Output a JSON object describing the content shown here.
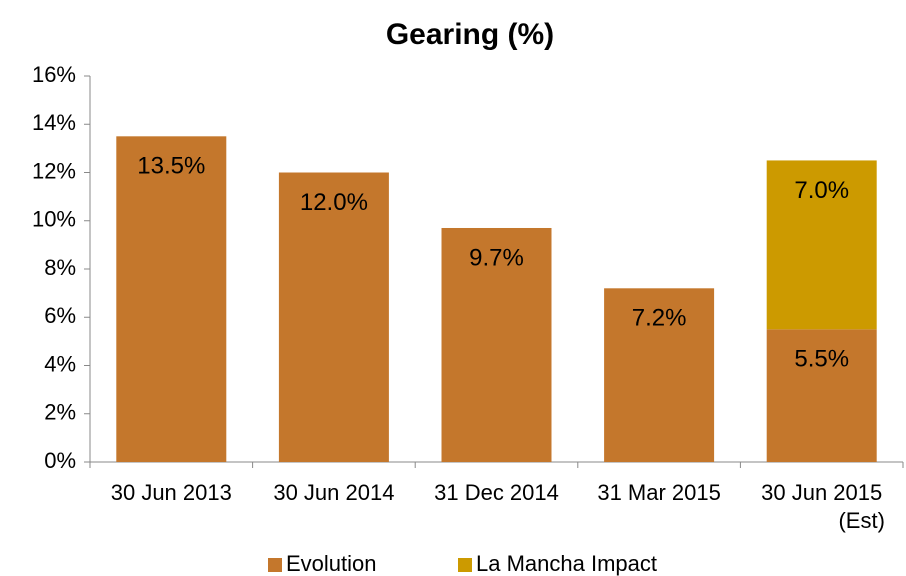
{
  "chart_data": {
    "type": "stacked_bar",
    "title": "Gearing (%)",
    "categories": [
      "30 Jun 2013",
      "30 Jun 2014",
      "31 Dec 2014",
      "31 Mar 2015",
      "30 Jun 2015 (Est)"
    ],
    "series": [
      {
        "name": "Evolution",
        "color": "#c4772c",
        "values": [
          13.5,
          12.0,
          9.7,
          7.2,
          5.5
        ],
        "value_labels": [
          "13.5%",
          "12.0%",
          "9.7%",
          "7.2%",
          "5.5%"
        ]
      },
      {
        "name": "La Mancha Impact",
        "color": "#cc9a00",
        "values": [
          null,
          null,
          null,
          null,
          7.0
        ],
        "value_labels": [
          null,
          null,
          null,
          null,
          "7.0%"
        ]
      }
    ],
    "ylim": [
      0,
      16
    ],
    "yticks": [
      {
        "value": 0,
        "label": "0%"
      },
      {
        "value": 2,
        "label": "2%"
      },
      {
        "value": 4,
        "label": "4%"
      },
      {
        "value": 6,
        "label": "6%"
      },
      {
        "value": 8,
        "label": "8%"
      },
      {
        "value": 10,
        "label": "10%"
      },
      {
        "value": 12,
        "label": "12%"
      },
      {
        "value": 14,
        "label": "14%"
      },
      {
        "value": 16,
        "label": "16%"
      }
    ],
    "grid": false,
    "legend": "bottom"
  }
}
